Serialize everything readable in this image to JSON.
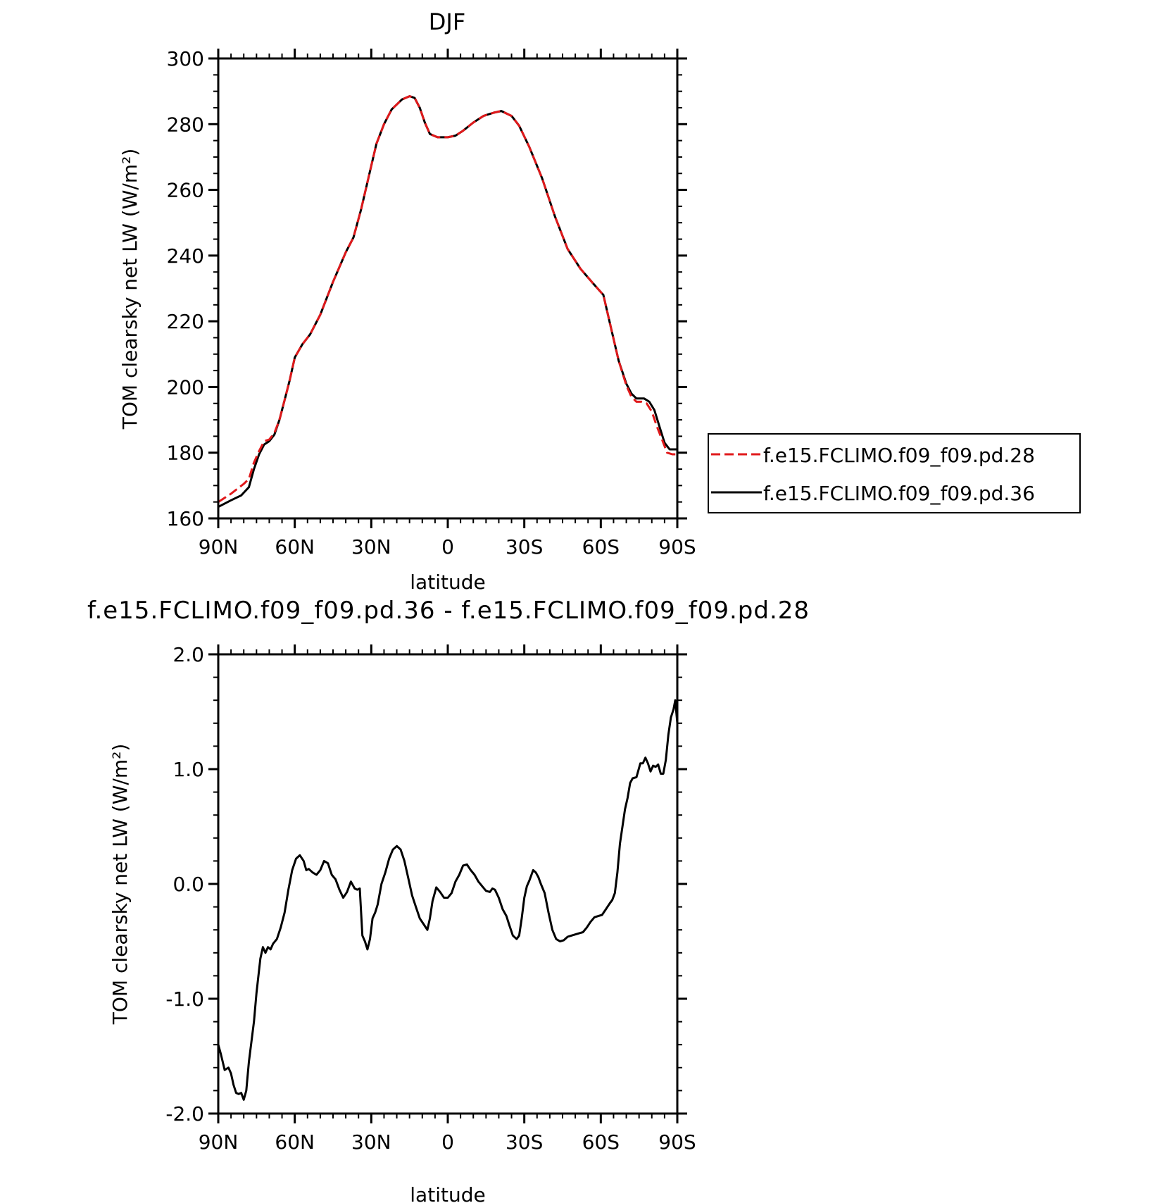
{
  "chart_data": [
    {
      "type": "line",
      "title": "DJF",
      "xlabel": "latitude",
      "ylabel": "TOM clearsky net LW (W/m²)",
      "xlim": [
        90,
        -90
      ],
      "ylim": [
        160,
        300
      ],
      "x_ticks": [
        90,
        60,
        30,
        0,
        -30,
        -60,
        -90
      ],
      "x_tick_labels": [
        "90N",
        "60N",
        "30N",
        "0",
        "30S",
        "60S",
        "90S"
      ],
      "y_ticks": [
        160,
        180,
        200,
        220,
        240,
        260,
        280,
        300
      ],
      "y_tick_labels": [
        "160",
        "180",
        "200",
        "220",
        "240",
        "260",
        "280",
        "300"
      ],
      "legend_position": "right",
      "grid": false,
      "series": [
        {
          "name": "f.e15.FCLIMO.f09_f09.pd.28",
          "color": "#e0191b",
          "dash": "dashed",
          "points": [
            [
              90,
              165
            ],
            [
              85,
              167.5
            ],
            [
              80,
              170.5
            ],
            [
              78,
              172
            ],
            [
              76,
              177
            ],
            [
              74,
              180.5
            ],
            [
              72,
              183.5
            ],
            [
              70,
              184
            ],
            [
              68,
              186
            ],
            [
              66,
              190
            ],
            [
              64,
              196
            ],
            [
              62,
              202
            ],
            [
              60,
              209
            ],
            [
              57,
              213
            ],
            [
              54,
              216
            ],
            [
              50,
              222
            ],
            [
              45,
              232
            ],
            [
              40,
              241
            ],
            [
              37,
              245.5
            ],
            [
              34,
              254
            ],
            [
              31,
              264
            ],
            [
              28,
              274
            ],
            [
              25,
              280
            ],
            [
              22,
              284.5
            ],
            [
              18,
              287.5
            ],
            [
              15,
              288.5
            ],
            [
              13,
              288
            ],
            [
              11,
              285
            ],
            [
              9,
              280.5
            ],
            [
              7,
              277
            ],
            [
              4,
              276
            ],
            [
              0,
              276
            ],
            [
              -3,
              276.5
            ],
            [
              -6,
              278
            ],
            [
              -10,
              280.5
            ],
            [
              -14,
              282.5
            ],
            [
              -18,
              283.5
            ],
            [
              -21,
              284
            ],
            [
              -25,
              282.5
            ],
            [
              -28,
              279.5
            ],
            [
              -32,
              273
            ],
            [
              -37,
              263.5
            ],
            [
              -42,
              252
            ],
            [
              -47,
              242
            ],
            [
              -52,
              236
            ],
            [
              -57,
              231.5
            ],
            [
              -61,
              228
            ],
            [
              -64,
              218
            ],
            [
              -67,
              208
            ],
            [
              -70,
              200.5
            ],
            [
              -72,
              197
            ],
            [
              -74,
              195.5
            ],
            [
              -76,
              195.5
            ],
            [
              -78,
              195
            ],
            [
              -80,
              192.5
            ],
            [
              -82,
              188
            ],
            [
              -84,
              184
            ],
            [
              -86,
              180
            ],
            [
              -88,
              179.5
            ],
            [
              -90,
              179.5
            ]
          ]
        },
        {
          "name": "f.e15.FCLIMO.f09_f09.pd.36",
          "color": "#000000",
          "dash": "solid",
          "points": [
            [
              90,
              163.5
            ],
            [
              85,
              165.5
            ],
            [
              81,
              167
            ],
            [
              78,
              169.5
            ],
            [
              76,
              175
            ],
            [
              74,
              179.5
            ],
            [
              72,
              182.5
            ],
            [
              70,
              183.5
            ],
            [
              68,
              185.5
            ],
            [
              66,
              190
            ],
            [
              64,
              196
            ],
            [
              62,
              202
            ],
            [
              60,
              209
            ],
            [
              57,
              213
            ],
            [
              54,
              216
            ],
            [
              50,
              222
            ],
            [
              45,
              232
            ],
            [
              40,
              241
            ],
            [
              37,
              245.5
            ],
            [
              34,
              254
            ],
            [
              31,
              264
            ],
            [
              28,
              274
            ],
            [
              25,
              280
            ],
            [
              22,
              284.5
            ],
            [
              18,
              287.5
            ],
            [
              15,
              288.5
            ],
            [
              13,
              288
            ],
            [
              11,
              285
            ],
            [
              9,
              280.5
            ],
            [
              7,
              277
            ],
            [
              4,
              276
            ],
            [
              0,
              276
            ],
            [
              -3,
              276.5
            ],
            [
              -6,
              278
            ],
            [
              -10,
              280.5
            ],
            [
              -14,
              282.5
            ],
            [
              -18,
              283.5
            ],
            [
              -21,
              284
            ],
            [
              -25,
              282.5
            ],
            [
              -28,
              279.5
            ],
            [
              -32,
              273
            ],
            [
              -37,
              263.5
            ],
            [
              -42,
              252
            ],
            [
              -47,
              242
            ],
            [
              -52,
              236
            ],
            [
              -57,
              231.5
            ],
            [
              -61,
              228
            ],
            [
              -64,
              218
            ],
            [
              -67,
              208
            ],
            [
              -70,
              201
            ],
            [
              -72,
              198
            ],
            [
              -74,
              196.5
            ],
            [
              -77,
              196.5
            ],
            [
              -79,
              195.5
            ],
            [
              -81,
              193
            ],
            [
              -83,
              188
            ],
            [
              -85,
              183
            ],
            [
              -87,
              181
            ],
            [
              -90,
              181
            ]
          ]
        }
      ]
    },
    {
      "type": "line",
      "title": "f.e15.FCLIMO.f09_f09.pd.36 - f.e15.FCLIMO.f09_f09.pd.28",
      "xlabel": "latitude",
      "ylabel": "TOM clearsky net LW (W/m²)",
      "xlim": [
        90,
        -90
      ],
      "ylim": [
        -2.0,
        2.0
      ],
      "x_ticks": [
        90,
        60,
        30,
        0,
        -30,
        -60,
        -90
      ],
      "x_tick_labels": [
        "90N",
        "60N",
        "30N",
        "0",
        "30S",
        "60S",
        "90S"
      ],
      "y_ticks": [
        -2.0,
        -1.0,
        0.0,
        1.0,
        2.0
      ],
      "y_tick_labels": [
        "-2.0",
        "-1.0",
        "0.0",
        "1.0",
        "2.0"
      ],
      "grid": false,
      "series": [
        {
          "color": "#000000",
          "points": [
            [
              90,
              -1.4
            ],
            [
              89,
              -1.48
            ],
            [
              87.5,
              -1.62
            ],
            [
              86,
              -1.6
            ],
            [
              85,
              -1.65
            ],
            [
              84,
              -1.75
            ],
            [
              83,
              -1.82
            ],
            [
              82,
              -1.83
            ],
            [
              81,
              -1.82
            ],
            [
              80,
              -1.88
            ],
            [
              79,
              -1.8
            ],
            [
              78,
              -1.55
            ],
            [
              76,
              -1.2
            ],
            [
              75,
              -0.95
            ],
            [
              73.5,
              -0.65
            ],
            [
              72.5,
              -0.55
            ],
            [
              71.5,
              -0.6
            ],
            [
              70.5,
              -0.55
            ],
            [
              69.5,
              -0.57
            ],
            [
              68.5,
              -0.52
            ],
            [
              67,
              -0.48
            ],
            [
              65.5,
              -0.38
            ],
            [
              64,
              -0.25
            ],
            [
              62.5,
              -0.05
            ],
            [
              61,
              0.12
            ],
            [
              59.5,
              0.22
            ],
            [
              58,
              0.25
            ],
            [
              56.5,
              0.2
            ],
            [
              55.5,
              0.12
            ],
            [
              54.5,
              0.13
            ],
            [
              53,
              0.1
            ],
            [
              51.5,
              0.08
            ],
            [
              50,
              0.12
            ],
            [
              48.5,
              0.2
            ],
            [
              47,
              0.18
            ],
            [
              45.5,
              0.08
            ],
            [
              44,
              0.04
            ],
            [
              42.5,
              -0.05
            ],
            [
              41,
              -0.12
            ],
            [
              39.5,
              -0.07
            ],
            [
              38,
              0.02
            ],
            [
              36.5,
              -0.04
            ],
            [
              35.5,
              -0.05
            ],
            [
              34.5,
              -0.04
            ],
            [
              33.5,
              -0.45
            ],
            [
              32.5,
              -0.5
            ],
            [
              31.5,
              -0.57
            ],
            [
              30.5,
              -0.48
            ],
            [
              29.5,
              -0.3
            ],
            [
              28.5,
              -0.25
            ],
            [
              27.5,
              -0.18
            ],
            [
              26,
              0
            ],
            [
              24.5,
              0.1
            ],
            [
              23,
              0.22
            ],
            [
              21.5,
              0.3
            ],
            [
              20,
              0.33
            ],
            [
              18.5,
              0.3
            ],
            [
              17,
              0.2
            ],
            [
              15.5,
              0.05
            ],
            [
              14,
              -0.1
            ],
            [
              12.5,
              -0.2
            ],
            [
              11,
              -0.3
            ],
            [
              9.5,
              -0.35
            ],
            [
              8,
              -0.4
            ],
            [
              7,
              -0.3
            ],
            [
              6,
              -0.15
            ],
            [
              4.5,
              -0.03
            ],
            [
              3,
              -0.07
            ],
            [
              1.5,
              -0.12
            ],
            [
              0,
              -0.12
            ],
            [
              -1.5,
              -0.08
            ],
            [
              -3,
              0.02
            ],
            [
              -4.5,
              0.08
            ],
            [
              -6,
              0.16
            ],
            [
              -7.5,
              0.17
            ],
            [
              -9,
              0.12
            ],
            [
              -10.5,
              0.08
            ],
            [
              -12,
              0.02
            ],
            [
              -13.5,
              -0.02
            ],
            [
              -15,
              -0.06
            ],
            [
              -16.5,
              -0.07
            ],
            [
              -17.5,
              -0.04
            ],
            [
              -18.5,
              -0.05
            ],
            [
              -20,
              -0.12
            ],
            [
              -21.5,
              -0.22
            ],
            [
              -23,
              -0.28
            ],
            [
              -24,
              -0.35
            ],
            [
              -25.5,
              -0.45
            ],
            [
              -27,
              -0.48
            ],
            [
              -28,
              -0.45
            ],
            [
              -29,
              -0.3
            ],
            [
              -30,
              -0.12
            ],
            [
              -31,
              -0.02
            ],
            [
              -32,
              0.03
            ],
            [
              -33.5,
              0.12
            ],
            [
              -34.5,
              0.1
            ],
            [
              -35.5,
              0.06
            ],
            [
              -36.5,
              0
            ],
            [
              -38,
              -0.08
            ],
            [
              -39.5,
              -0.25
            ],
            [
              -41,
              -0.4
            ],
            [
              -42.5,
              -0.48
            ],
            [
              -44,
              -0.5
            ],
            [
              -45.5,
              -0.49
            ],
            [
              -47,
              -0.46
            ],
            [
              -48.5,
              -0.45
            ],
            [
              -50,
              -0.44
            ],
            [
              -51.5,
              -0.43
            ],
            [
              -53,
              -0.42
            ],
            [
              -54.5,
              -0.38
            ],
            [
              -56,
              -0.33
            ],
            [
              -57.5,
              -0.29
            ],
            [
              -59,
              -0.28
            ],
            [
              -60.5,
              -0.27
            ],
            [
              -62,
              -0.22
            ],
            [
              -63.5,
              -0.17
            ],
            [
              -64.5,
              -0.14
            ],
            [
              -65.5,
              -0.08
            ],
            [
              -66.5,
              0.1
            ],
            [
              -67.5,
              0.35
            ],
            [
              -68.5,
              0.5
            ],
            [
              -69.5,
              0.65
            ],
            [
              -70.5,
              0.75
            ],
            [
              -71.5,
              0.88
            ],
            [
              -72.5,
              0.92
            ],
            [
              -74,
              0.93
            ],
            [
              -75.5,
              1.05
            ],
            [
              -76.5,
              1.05
            ],
            [
              -77.5,
              1.1
            ],
            [
              -78.5,
              1.05
            ],
            [
              -79.5,
              0.98
            ],
            [
              -80.5,
              1.03
            ],
            [
              -81.5,
              1.02
            ],
            [
              -82.5,
              1.04
            ],
            [
              -83.5,
              0.96
            ],
            [
              -84.5,
              0.96
            ],
            [
              -85.5,
              1.08
            ],
            [
              -86.5,
              1.3
            ],
            [
              -87.5,
              1.45
            ],
            [
              -88.5,
              1.52
            ],
            [
              -89.2,
              1.6
            ],
            [
              -90,
              1.4
            ]
          ]
        }
      ]
    }
  ]
}
